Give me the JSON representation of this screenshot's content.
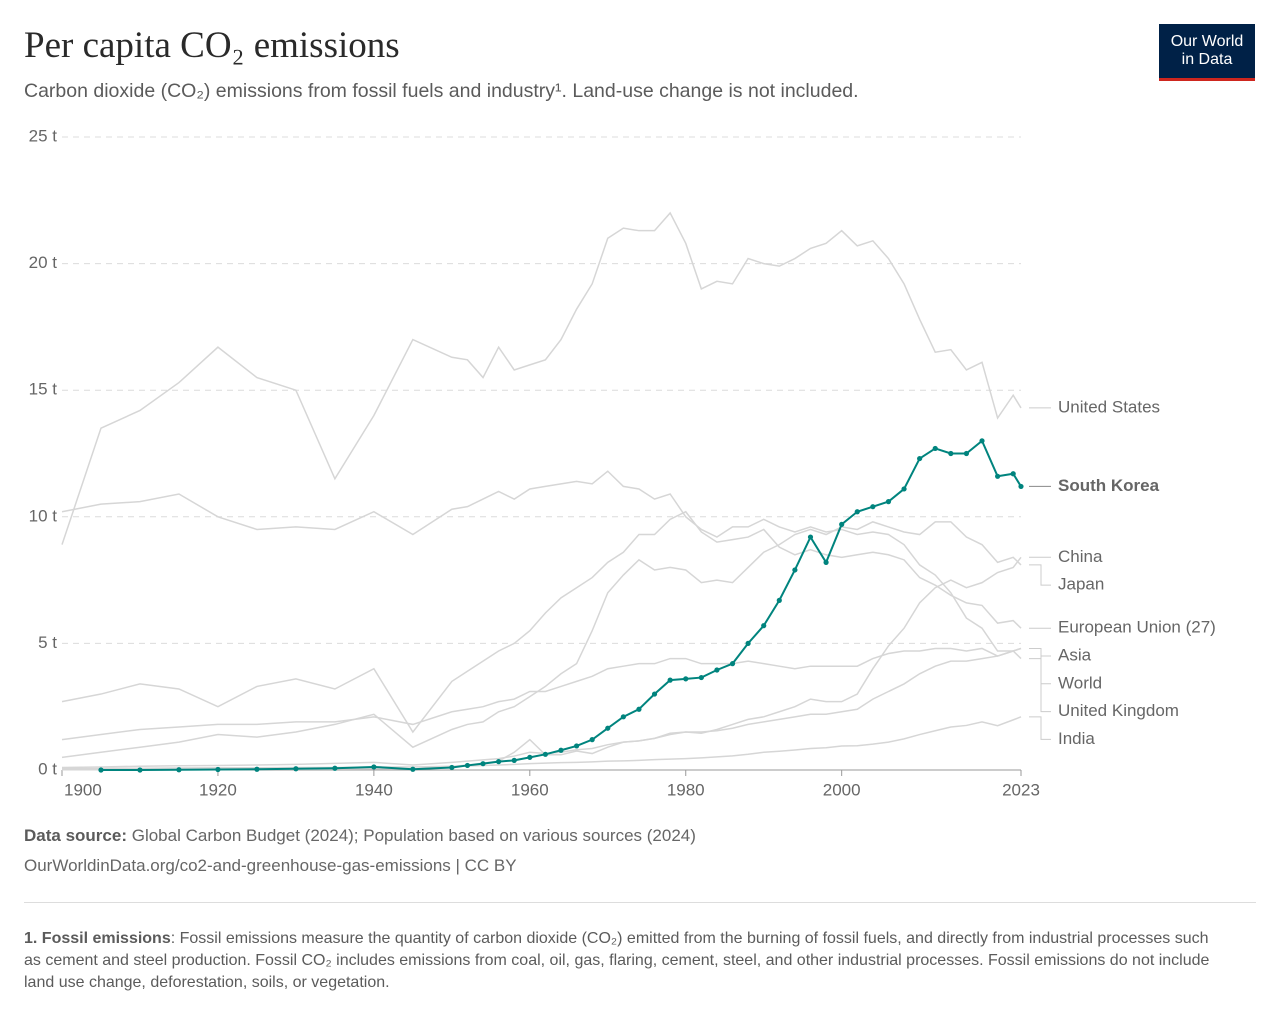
{
  "title": "Per capita CO₂ emissions",
  "subtitle": "Carbon dioxide (CO₂) emissions from fossil fuels and industry¹. Land-use change is not included.",
  "logo": "Our World in Data",
  "source": {
    "label": "Data source:",
    "text": "Global Carbon Budget (2024); Population based on various sources (2024)",
    "url": "OurWorldinData.org/co2-and-greenhouse-gas-emissions | CC BY"
  },
  "footnote": {
    "label": "1. Fossil emissions",
    "text": ": Fossil emissions measure the quantity of carbon dioxide (CO₂) emitted from the burning of fossil fuels, and directly from industrial processes such as cement and steel production. Fossil CO₂ includes emissions from coal, oil, gas, flaring, cement, steel, and other industrial processes. Fossil emissions do not include land use change, deforestation, soils, or vegetation."
  },
  "chart_data": {
    "type": "line",
    "x": [
      1900,
      1905,
      1910,
      1915,
      1920,
      1925,
      1930,
      1935,
      1940,
      1945,
      1950,
      1952,
      1954,
      1956,
      1958,
      1960,
      1962,
      1964,
      1966,
      1968,
      1970,
      1972,
      1974,
      1976,
      1978,
      1980,
      1982,
      1984,
      1986,
      1988,
      1990,
      1992,
      1994,
      1996,
      1998,
      2000,
      2002,
      2004,
      2006,
      2008,
      2010,
      2012,
      2014,
      2016,
      2018,
      2020,
      2022,
      2023
    ],
    "xlim": [
      1900,
      2023
    ],
    "xticks": [
      1900,
      1920,
      1940,
      1960,
      1980,
      2000,
      2023
    ],
    "ylim": [
      0,
      25
    ],
    "yticks": [
      {
        "value": 0,
        "label": "0 t"
      },
      {
        "value": 5,
        "label": "5 t"
      },
      {
        "value": 10,
        "label": "10 t"
      },
      {
        "value": 15,
        "label": "15 t"
      },
      {
        "value": 20,
        "label": "20 t"
      },
      {
        "value": 25,
        "label": "25 t"
      }
    ],
    "grid": true,
    "series": [
      {
        "name": "United States",
        "color": "#d6d6d6",
        "values": [
          8.9,
          13.5,
          14.2,
          15.3,
          16.7,
          15.5,
          15.0,
          11.5,
          14.0,
          17.0,
          16.3,
          16.2,
          15.5,
          16.7,
          15.8,
          16.0,
          16.2,
          17.0,
          18.2,
          19.2,
          21.0,
          21.4,
          21.3,
          21.3,
          22.0,
          20.8,
          19.0,
          19.3,
          19.2,
          20.2,
          20.0,
          19.9,
          20.2,
          20.6,
          20.8,
          21.3,
          20.7,
          20.9,
          20.2,
          19.2,
          17.8,
          16.5,
          16.6,
          15.8,
          16.1,
          13.9,
          14.8,
          14.3
        ]
      },
      {
        "name": "South Korea",
        "color": "#00847e",
        "markers": true,
        "values": [
          null,
          0.0,
          0.0,
          0.01,
          0.02,
          0.03,
          0.05,
          0.07,
          0.12,
          0.03,
          0.1,
          0.18,
          0.25,
          0.33,
          0.38,
          0.5,
          0.62,
          0.78,
          0.95,
          1.2,
          1.65,
          2.1,
          2.4,
          3.0,
          3.55,
          3.6,
          3.65,
          3.95,
          4.2,
          5.0,
          5.7,
          6.7,
          7.9,
          9.2,
          8.2,
          9.7,
          10.2,
          10.4,
          10.6,
          11.1,
          12.3,
          12.7,
          12.5,
          12.5,
          13.0,
          11.6,
          11.7,
          11.2
        ]
      },
      {
        "name": "China",
        "color": "#d6d6d6",
        "values": [
          0.01,
          0.01,
          0.02,
          0.02,
          0.02,
          0.03,
          0.03,
          0.04,
          0.05,
          0.04,
          0.14,
          0.2,
          0.27,
          0.35,
          0.7,
          1.2,
          0.6,
          0.6,
          0.75,
          0.65,
          0.9,
          1.1,
          1.15,
          1.25,
          1.45,
          1.5,
          1.45,
          1.6,
          1.8,
          2.0,
          2.1,
          2.3,
          2.5,
          2.8,
          2.7,
          2.7,
          3.0,
          4.0,
          4.9,
          5.6,
          6.6,
          7.2,
          7.5,
          7.2,
          7.4,
          7.8,
          8.0,
          8.4
        ]
      },
      {
        "name": "Japan",
        "color": "#d6d6d6",
        "values": [
          0.5,
          0.7,
          0.9,
          1.1,
          1.4,
          1.3,
          1.5,
          1.8,
          2.2,
          0.9,
          1.6,
          1.8,
          1.9,
          2.3,
          2.5,
          2.9,
          3.3,
          3.8,
          4.2,
          5.5,
          7.0,
          7.7,
          8.3,
          7.9,
          8.0,
          7.9,
          7.4,
          7.5,
          7.4,
          8.0,
          8.6,
          8.9,
          9.3,
          9.5,
          9.3,
          9.6,
          9.5,
          9.8,
          9.6,
          9.4,
          9.3,
          9.8,
          9.8,
          9.2,
          8.9,
          8.2,
          8.4,
          8.1
        ]
      },
      {
        "name": "European Union (27)",
        "color": "#d6d6d6",
        "values": [
          2.7,
          3.0,
          3.4,
          3.2,
          2.5,
          3.3,
          3.6,
          3.2,
          4.0,
          1.5,
          3.5,
          3.9,
          4.3,
          4.7,
          5.0,
          5.5,
          6.2,
          6.8,
          7.2,
          7.6,
          8.2,
          8.6,
          9.3,
          9.3,
          9.9,
          10.2,
          9.4,
          9.0,
          9.1,
          9.2,
          9.5,
          8.8,
          8.5,
          8.7,
          8.5,
          8.4,
          8.5,
          8.6,
          8.5,
          8.3,
          7.6,
          7.3,
          6.9,
          6.6,
          6.5,
          5.8,
          5.9,
          5.6
        ]
      },
      {
        "name": "Asia",
        "color": "#d6d6d6",
        "values": [
          0.1,
          0.12,
          0.15,
          0.17,
          0.18,
          0.2,
          0.22,
          0.26,
          0.3,
          0.2,
          0.3,
          0.35,
          0.4,
          0.45,
          0.55,
          0.7,
          0.65,
          0.7,
          0.8,
          0.85,
          1.0,
          1.1,
          1.15,
          1.25,
          1.4,
          1.5,
          1.5,
          1.55,
          1.65,
          1.8,
          1.9,
          2.0,
          2.1,
          2.2,
          2.2,
          2.3,
          2.4,
          2.8,
          3.1,
          3.4,
          3.8,
          4.1,
          4.3,
          4.3,
          4.4,
          4.5,
          4.7,
          4.8
        ]
      },
      {
        "name": "World",
        "color": "#d6d6d6",
        "values": [
          1.2,
          1.4,
          1.6,
          1.7,
          1.8,
          1.8,
          1.9,
          1.9,
          2.1,
          1.8,
          2.3,
          2.4,
          2.5,
          2.7,
          2.8,
          3.1,
          3.1,
          3.3,
          3.5,
          3.7,
          4.0,
          4.1,
          4.2,
          4.2,
          4.4,
          4.4,
          4.2,
          4.2,
          4.2,
          4.3,
          4.2,
          4.1,
          4.0,
          4.1,
          4.1,
          4.1,
          4.1,
          4.4,
          4.6,
          4.7,
          4.7,
          4.8,
          4.8,
          4.7,
          4.8,
          4.5,
          4.7,
          4.8
        ]
      },
      {
        "name": "United Kingdom",
        "color": "#d6d6d6",
        "values": [
          10.2,
          10.5,
          10.6,
          10.9,
          10.0,
          9.5,
          9.6,
          9.5,
          10.2,
          9.3,
          10.3,
          10.4,
          10.7,
          11.0,
          10.7,
          11.1,
          11.2,
          11.3,
          11.4,
          11.3,
          11.8,
          11.2,
          11.1,
          10.7,
          10.9,
          10.0,
          9.5,
          9.2,
          9.6,
          9.6,
          9.9,
          9.6,
          9.4,
          9.6,
          9.4,
          9.5,
          9.3,
          9.4,
          9.3,
          8.9,
          8.1,
          7.7,
          7.0,
          6.0,
          5.6,
          4.7,
          4.7,
          4.4
        ]
      },
      {
        "name": "India",
        "color": "#d6d6d6",
        "values": [
          0.05,
          0.06,
          0.07,
          0.08,
          0.09,
          0.09,
          0.1,
          0.1,
          0.12,
          0.12,
          0.15,
          0.16,
          0.18,
          0.2,
          0.22,
          0.25,
          0.27,
          0.29,
          0.3,
          0.32,
          0.35,
          0.36,
          0.38,
          0.41,
          0.43,
          0.45,
          0.48,
          0.52,
          0.56,
          0.62,
          0.7,
          0.74,
          0.79,
          0.85,
          0.88,
          0.95,
          0.96,
          1.02,
          1.1,
          1.23,
          1.4,
          1.55,
          1.7,
          1.76,
          1.9,
          1.75,
          1.98,
          2.1
        ]
      }
    ]
  }
}
